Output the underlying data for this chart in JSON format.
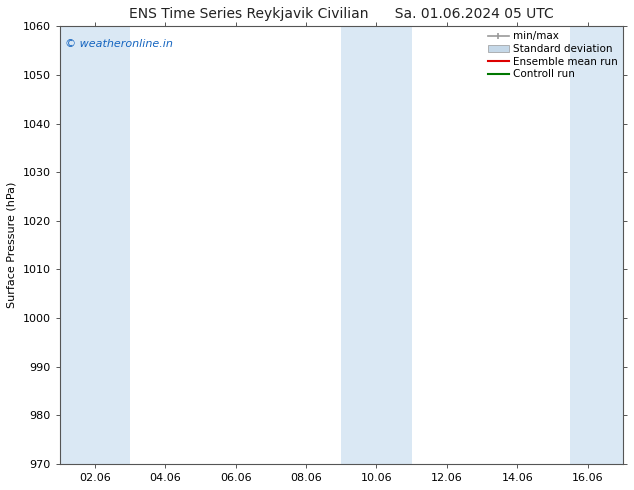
{
  "title": "ENS Time Series Reykjavik Civilian",
  "title_date": "Sa. 01.06.2024 05 UTC",
  "ylabel": "Surface Pressure (hPa)",
  "ylim": [
    970,
    1060
  ],
  "yticks": [
    970,
    980,
    990,
    1000,
    1010,
    1020,
    1030,
    1040,
    1050,
    1060
  ],
  "xtick_labels": [
    "02.06",
    "04.06",
    "06.06",
    "08.06",
    "10.06",
    "12.06",
    "14.06",
    "16.06"
  ],
  "x_positions": [
    1,
    3,
    5,
    7,
    9,
    11,
    13,
    15
  ],
  "xlim": [
    0,
    16
  ],
  "shaded_bands": [
    {
      "x_start": 0.0,
      "x_end": 2.0
    },
    {
      "x_start": 8.0,
      "x_end": 10.0
    },
    {
      "x_start": 14.5,
      "x_end": 16.0
    }
  ],
  "shade_color": "#dae8f4",
  "background_color": "#ffffff",
  "plot_bg_color": "#ffffff",
  "watermark_text": "© weatheronline.in",
  "watermark_color": "#1565c0",
  "legend_entries": [
    {
      "label": "min/max",
      "type": "errorbar",
      "color": "#999999"
    },
    {
      "label": "Standard deviation",
      "type": "fill",
      "color": "#c5d8e8"
    },
    {
      "label": "Ensemble mean run",
      "type": "line",
      "color": "#dd0000"
    },
    {
      "label": "Controll run",
      "type": "line",
      "color": "#007700"
    }
  ],
  "font_size": 8,
  "ylabel_font_size": 8,
  "title_font_size": 10,
  "watermark_font_size": 8,
  "legend_font_size": 7.5
}
